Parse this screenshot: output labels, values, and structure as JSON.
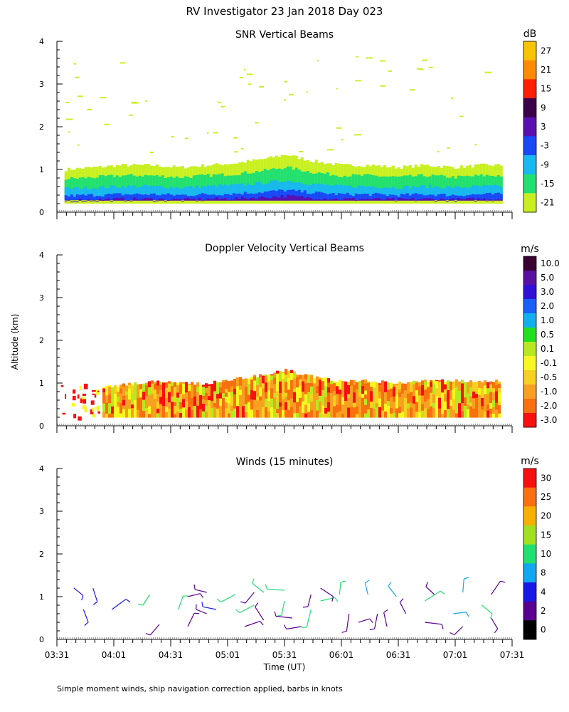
{
  "title": "RV Investigator  23 Jan 2018 Day 023",
  "ylabel": "Altitude (km)",
  "xlabel": "Time (UT)",
  "footnote": "Simple moment winds, ship navigation correction applied, barbs in knots",
  "x_ticks": [
    "03:31",
    "04:01",
    "04:31",
    "05:01",
    "05:31",
    "06:01",
    "06:31",
    "07:01",
    "07:31"
  ],
  "chart_data": [
    {
      "type": "heatmap",
      "title": "SNR Vertical Beams",
      "xlabel": "Time (UT)",
      "ylabel": "Altitude (km)",
      "xlim": [
        "03:31",
        "07:31"
      ],
      "ylim": [
        0,
        4
      ],
      "y_ticks": [
        "0",
        "1",
        "2",
        "3",
        "4"
      ],
      "colorbar": {
        "unit": "dB",
        "labels": [
          "27",
          "21",
          "15",
          "9",
          "3",
          "-3",
          "-9",
          "-15",
          "-21"
        ],
        "colors": [
          "#f8c400",
          "#ff8a00",
          "#ff2000",
          "#3a004a",
          "#5a10b0",
          "#1848f8",
          "#18b8f0",
          "#20e070",
          "#c8f020"
        ]
      },
      "echo_top_profile_km": [
        {
          "time": "03:35",
          "top": 1.0
        },
        {
          "time": "03:50",
          "top": 1.05
        },
        {
          "time": "04:05",
          "top": 1.1
        },
        {
          "time": "04:20",
          "top": 1.1
        },
        {
          "time": "04:35",
          "top": 1.05
        },
        {
          "time": "04:50",
          "top": 1.1
        },
        {
          "time": "05:05",
          "top": 1.15
        },
        {
          "time": "05:20",
          "top": 1.25
        },
        {
          "time": "05:31",
          "top": 1.35
        },
        {
          "time": "05:45",
          "top": 1.2
        },
        {
          "time": "06:00",
          "top": 1.1
        },
        {
          "time": "06:15",
          "top": 1.1
        },
        {
          "time": "06:30",
          "top": 1.05
        },
        {
          "time": "06:45",
          "top": 1.1
        },
        {
          "time": "07:00",
          "top": 1.05
        },
        {
          "time": "07:15",
          "top": 1.1
        },
        {
          "time": "07:25",
          "top": 1.1
        }
      ],
      "layers_km": [
        {
          "label": "-21",
          "bottom": 0.7,
          "top_scale": 1.0
        },
        {
          "label": "-15",
          "bottom": 0.45,
          "top_scale": 0.78
        },
        {
          "label": "-9",
          "bottom": 0.3,
          "top_scale": 0.55
        },
        {
          "label": "-3",
          "bottom": 0.2,
          "top_scale": 0.38
        },
        {
          "label": "3",
          "bottom": 0.18,
          "top_scale": 0.28
        }
      ]
    },
    {
      "type": "heatmap",
      "title": "Doppler Velocity Vertical Beams",
      "xlabel": "Time (UT)",
      "ylabel": "Altitude (km)",
      "xlim": [
        "03:31",
        "07:31"
      ],
      "ylim": [
        0,
        4
      ],
      "y_ticks": [
        "0",
        "1",
        "2",
        "3",
        "4"
      ],
      "colorbar": {
        "unit": "m/s",
        "labels": [
          "10.0",
          "5.0",
          "3.0",
          "2.0",
          "1.0",
          "0.5",
          "0.1",
          "-0.1",
          "-0.5",
          "-1.0",
          "-2.0",
          "-3.0"
        ],
        "colors": [
          "#3a0030",
          "#5a10a0",
          "#3010d8",
          "#1860f8",
          "#10b0f0",
          "#20e020",
          "#b8e820",
          "#f8f820",
          "#f8d020",
          "#f8a020",
          "#f87010",
          "#f81010"
        ]
      },
      "dominant_value_m_s": "-1.0 to -2.0",
      "echo_top_profile_km": [
        {
          "time": "03:55",
          "top": 0.9
        },
        {
          "time": "04:05",
          "top": 0.95
        },
        {
          "time": "04:20",
          "top": 1.05
        },
        {
          "time": "04:35",
          "top": 1.0
        },
        {
          "time": "04:50",
          "top": 1.0
        },
        {
          "time": "05:05",
          "top": 1.1
        },
        {
          "time": "05:20",
          "top": 1.2
        },
        {
          "time": "05:31",
          "top": 1.3
        },
        {
          "time": "05:45",
          "top": 1.15
        },
        {
          "time": "06:00",
          "top": 1.05
        },
        {
          "time": "06:15",
          "top": 1.05
        },
        {
          "time": "06:30",
          "top": 1.0
        },
        {
          "time": "06:45",
          "top": 1.05
        },
        {
          "time": "07:00",
          "top": 1.05
        },
        {
          "time": "07:15",
          "top": 1.05
        },
        {
          "time": "07:25",
          "top": 1.05
        }
      ]
    },
    {
      "type": "scatter",
      "title": "Winds (15 minutes)",
      "xlabel": "Time (UT)",
      "ylabel": "Altitude (km)",
      "xlim": [
        "03:31",
        "07:31"
      ],
      "ylim": [
        0,
        4
      ],
      "y_ticks": [
        "0",
        "1",
        "2",
        "3",
        "4"
      ],
      "colorbar": {
        "unit": "m/s",
        "labels": [
          "30",
          "25",
          "20",
          "15",
          "10",
          "8",
          "4",
          "2",
          "0"
        ],
        "colors": [
          "#f81010",
          "#f87010",
          "#f8b000",
          "#a0e020",
          "#20e070",
          "#10a8f0",
          "#1818e8",
          "#5a0090",
          "#000000"
        ]
      },
      "barbs": [
        {
          "time": "03:40",
          "alt": 1.2,
          "speed": 4
        },
        {
          "time": "03:45",
          "alt": 0.7,
          "speed": 4
        },
        {
          "time": "03:50",
          "alt": 1.2,
          "speed": 4
        },
        {
          "time": "04:00",
          "alt": 0.7,
          "speed": 4
        },
        {
          "time": "04:20",
          "alt": 1.05,
          "speed": 10
        },
        {
          "time": "04:25",
          "alt": 0.35,
          "speed": 2
        },
        {
          "time": "04:35",
          "alt": 0.7,
          "speed": 10
        },
        {
          "time": "04:40",
          "alt": 0.3,
          "speed": 2
        },
        {
          "time": "04:40",
          "alt": 1.0,
          "speed": 2
        },
        {
          "time": "04:50",
          "alt": 0.6,
          "speed": 2
        },
        {
          "time": "04:50",
          "alt": 1.1,
          "speed": 2
        },
        {
          "time": "04:55",
          "alt": 0.7,
          "speed": 4
        },
        {
          "time": "05:05",
          "alt": 1.05,
          "speed": 10
        },
        {
          "time": "05:10",
          "alt": 0.3,
          "speed": 2
        },
        {
          "time": "05:15",
          "alt": 0.8,
          "speed": 10
        },
        {
          "time": "05:15",
          "alt": 1.1,
          "speed": 2
        },
        {
          "time": "05:20",
          "alt": 0.45,
          "speed": 2
        },
        {
          "time": "05:20",
          "alt": 1.1,
          "speed": 10
        },
        {
          "time": "05:31",
          "alt": 0.9,
          "speed": 10
        },
        {
          "time": "05:31",
          "alt": 1.15,
          "speed": 10
        },
        {
          "time": "05:35",
          "alt": 0.5,
          "speed": 2
        },
        {
          "time": "05:40",
          "alt": 0.3,
          "speed": 2
        },
        {
          "time": "05:45",
          "alt": 0.7,
          "speed": 10
        },
        {
          "time": "05:45",
          "alt": 1.05,
          "speed": 2
        },
        {
          "time": "05:50",
          "alt": 0.9,
          "speed": 10
        },
        {
          "time": "05:50",
          "alt": 1.2,
          "speed": 2
        },
        {
          "time": "06:00",
          "alt": 1.05,
          "speed": 10
        },
        {
          "time": "06:05",
          "alt": 0.6,
          "speed": 2
        },
        {
          "time": "06:10",
          "alt": 0.4,
          "speed": 2
        },
        {
          "time": "06:15",
          "alt": 1.05,
          "speed": 8
        },
        {
          "time": "06:20",
          "alt": 0.6,
          "speed": 2
        },
        {
          "time": "06:25",
          "alt": 0.3,
          "speed": 2
        },
        {
          "time": "06:30",
          "alt": 1.0,
          "speed": 8
        },
        {
          "time": "06:35",
          "alt": 0.6,
          "speed": 2
        },
        {
          "time": "06:45",
          "alt": 0.9,
          "speed": 10
        },
        {
          "time": "06:45",
          "alt": 0.4,
          "speed": 2
        },
        {
          "time": "06:50",
          "alt": 1.05,
          "speed": 2
        },
        {
          "time": "07:00",
          "alt": 0.6,
          "speed": 8
        },
        {
          "time": "07:05",
          "alt": 1.1,
          "speed": 8
        },
        {
          "time": "07:05",
          "alt": 0.3,
          "speed": 2
        },
        {
          "time": "07:15",
          "alt": 0.8,
          "speed": 10
        },
        {
          "time": "07:20",
          "alt": 1.05,
          "speed": 2
        },
        {
          "time": "07:20",
          "alt": 0.5,
          "speed": 2
        }
      ]
    }
  ]
}
